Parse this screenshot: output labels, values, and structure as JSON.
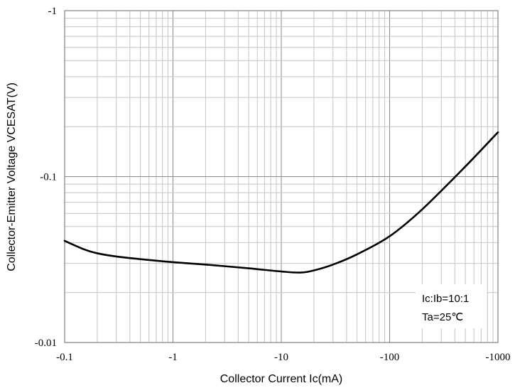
{
  "chart_data": {
    "type": "line",
    "xlabel": "Collector Current   Ic(mA)",
    "ylabel": "Collector-Emitter Voltage    VCESAT(V)",
    "x_scale": "log",
    "y_scale": "log",
    "xlim": [
      -0.1,
      -1000
    ],
    "ylim": [
      -0.01,
      -1
    ],
    "x_ticks": [
      "-0.1",
      "-1",
      "-10",
      "-100",
      "-1000"
    ],
    "y_ticks": [
      "-1",
      "-0.1",
      "-0.01"
    ],
    "grid": true,
    "annotations": [
      "Ic:Ib=10:1",
      "Ta=25℃"
    ],
    "annotation_position": "bottom-right",
    "series": [
      {
        "x": [
          -0.1,
          -0.15,
          -0.2,
          -0.3,
          -0.5,
          -1,
          -2,
          -5,
          -10,
          -15,
          -20,
          -30,
          -50,
          -100,
          -200,
          -500,
          -1000
        ],
        "y": [
          -0.041,
          -0.0365,
          -0.0345,
          -0.033,
          -0.0318,
          -0.0305,
          -0.0295,
          -0.028,
          -0.0268,
          -0.0264,
          -0.0272,
          -0.0295,
          -0.034,
          -0.0437,
          -0.0635,
          -0.115,
          -0.185
        ]
      }
    ]
  }
}
